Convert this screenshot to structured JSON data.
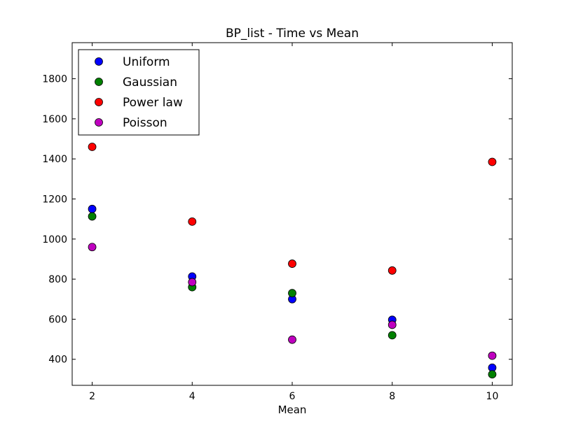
{
  "chart_data": {
    "type": "scatter",
    "title": "BP_list - Time vs Mean",
    "xlabel": "Mean",
    "ylabel": "",
    "xlim": [
      1.6,
      10.4
    ],
    "ylim": [
      270,
      1980
    ],
    "x_ticks": [
      2,
      4,
      6,
      8,
      10
    ],
    "y_ticks": [
      400,
      600,
      800,
      1000,
      1200,
      1400,
      1600,
      1800
    ],
    "grid": false,
    "legend_position": "top-left",
    "series": [
      {
        "name": "Uniform",
        "color": "#0000ff",
        "x": [
          2,
          4,
          6,
          8,
          10
        ],
        "y": [
          1150,
          813,
          700,
          597,
          358
        ]
      },
      {
        "name": "Gaussian",
        "color": "#008000",
        "x": [
          2,
          4,
          6,
          8,
          10
        ],
        "y": [
          1113,
          760,
          730,
          520,
          325
        ]
      },
      {
        "name": "Power law",
        "color": "#ff0000",
        "x": [
          2,
          4,
          6,
          8,
          10
        ],
        "y": [
          1460,
          1087,
          877,
          843,
          1385
        ]
      },
      {
        "name": "Poisson",
        "color": "#bf00bf",
        "x": [
          2,
          4,
          6,
          8,
          10
        ],
        "y": [
          960,
          785,
          498,
          572,
          418
        ]
      }
    ]
  }
}
